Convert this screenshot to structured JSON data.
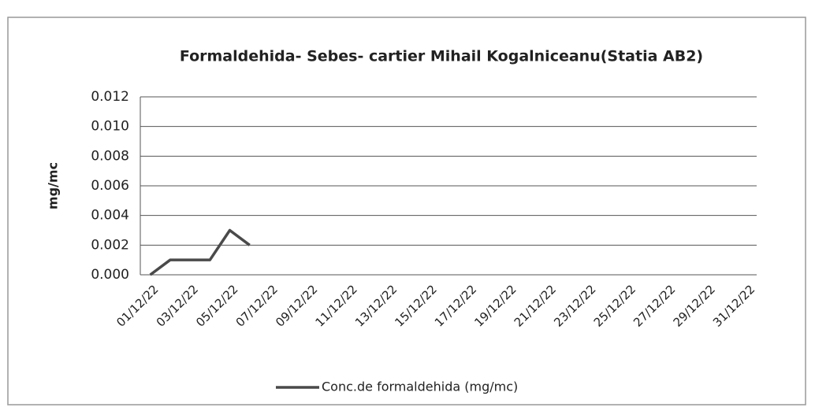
{
  "chart_data": {
    "type": "line",
    "title": "Formaldehida- Sebes-  cartier Mihail Kogalniceanu(Statia AB2)",
    "y_label": "mg/mc",
    "categories": [
      "01/12/22",
      null,
      "03/12/22",
      null,
      "05/12/22",
      null,
      "07/12/22",
      null,
      "09/12/22",
      null,
      "11/12/22",
      null,
      "13/12/22",
      null,
      "15/12/22",
      null,
      "17/12/22",
      null,
      "19/12/22",
      null,
      "21/12/22",
      null,
      "23/12/22",
      null,
      "25/12/22",
      null,
      "27/12/22",
      null,
      "29/12/22",
      null,
      "31/12/22"
    ],
    "series": [
      {
        "name": "Conc.de formaldehida (mg/mc)",
        "color": "#4a4a4a",
        "values": [
          0,
          0.001,
          0.001,
          0.001,
          0.003,
          0.002,
          null,
          null,
          null,
          null,
          null,
          null,
          null,
          null,
          null,
          null,
          null,
          null,
          null,
          null,
          null,
          null,
          null,
          null,
          null,
          null,
          null,
          null,
          null,
          null,
          null
        ]
      }
    ],
    "ylim": [
      0,
      0.012
    ],
    "yticks": [
      {
        "value": 0,
        "label": "0.000"
      },
      {
        "value": 0.002,
        "label": "0.002"
      },
      {
        "value": 0.004,
        "label": "0.004"
      },
      {
        "value": 0.006,
        "label": "0.006"
      },
      {
        "value": 0.008,
        "label": "0.008"
      },
      {
        "value": 0.01,
        "label": "0.010"
      },
      {
        "value": 0.012,
        "label": "0.012"
      }
    ],
    "grid": true,
    "legend": "bottom"
  }
}
